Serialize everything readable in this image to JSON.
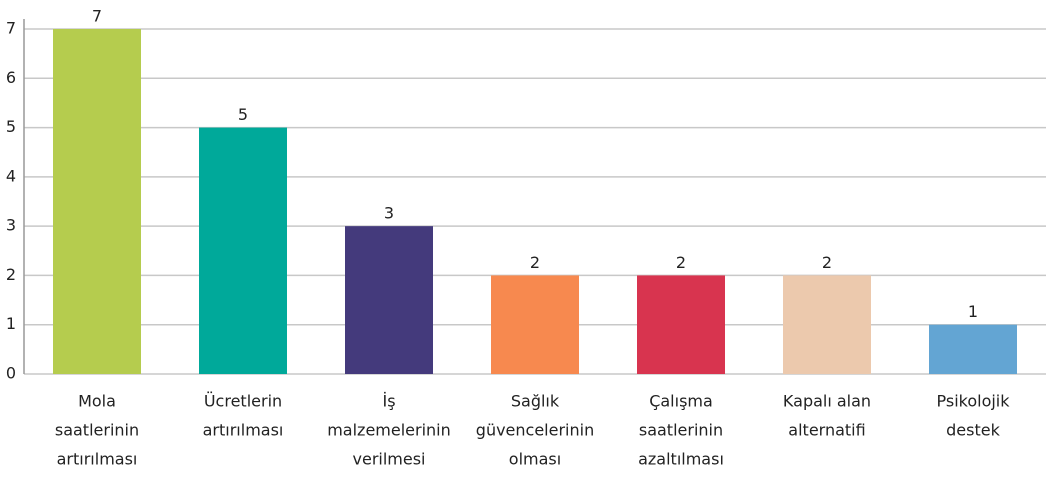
{
  "chart_data": {
    "type": "bar",
    "categories": [
      [
        "Mola",
        "saatlerinin",
        "artırılması"
      ],
      [
        "Ücretlerin",
        "artırılması"
      ],
      [
        "İş",
        "malzemelerinin",
        "verilmesi"
      ],
      [
        "Sağlık",
        "güvencelerinin",
        "olması"
      ],
      [
        "Çalışma",
        "saatlerinin",
        "azaltılması"
      ],
      [
        "Kapalı alan",
        "alternatifi"
      ],
      [
        "Psikolojik",
        "destek"
      ]
    ],
    "values": [
      7,
      5,
      3,
      2,
      2,
      2,
      1
    ],
    "colors": [
      "#b5cc4e",
      "#00a99a",
      "#443a7c",
      "#f7894f",
      "#d8344f",
      "#ecc9ad",
      "#63a5d3"
    ],
    "ylim": [
      0,
      7
    ],
    "yticks": [
      0,
      1,
      2,
      3,
      4,
      5,
      6,
      7
    ],
    "grid": true
  }
}
